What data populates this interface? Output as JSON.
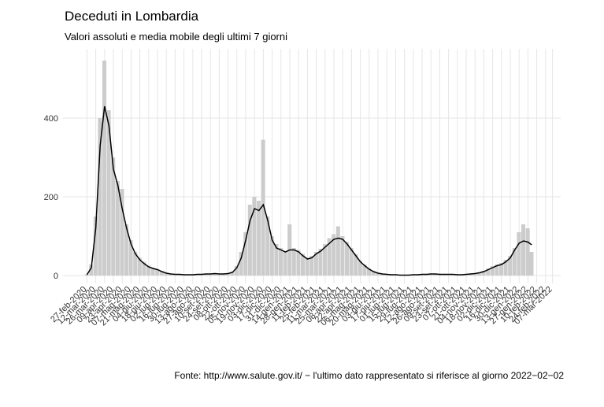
{
  "chart_data": {
    "type": "bar-line",
    "title": "Deceduti in Lombardia",
    "subtitle": "Valori assoluti e media mobile degli ultimi 7 giorni",
    "caption": "Fonte: http://www.salute.gov.it/ − l'ultimo dato rappresentato si riferisce al giorno 2022−02−02",
    "x": [
      "2020-02-27",
      "2020-03-05",
      "2020-03-12",
      "2020-03-19",
      "2020-03-26",
      "2020-04-02",
      "2020-04-09",
      "2020-04-16",
      "2020-04-23",
      "2020-04-30",
      "2020-05-07",
      "2020-05-14",
      "2020-05-21",
      "2020-05-28",
      "2020-06-04",
      "2020-06-11",
      "2020-06-18",
      "2020-06-25",
      "2020-07-02",
      "2020-07-09",
      "2020-07-16",
      "2020-07-23",
      "2020-07-30",
      "2020-08-06",
      "2020-08-13",
      "2020-08-20",
      "2020-08-27",
      "2020-09-03",
      "2020-09-10",
      "2020-09-17",
      "2020-09-24",
      "2020-10-01",
      "2020-10-08",
      "2020-10-15",
      "2020-10-22",
      "2020-10-29",
      "2020-11-05",
      "2020-11-12",
      "2020-11-19",
      "2020-11-26",
      "2020-12-03",
      "2020-12-10",
      "2020-12-17",
      "2020-12-24",
      "2020-12-31",
      "2021-01-07",
      "2021-01-14",
      "2021-01-21",
      "2021-01-28",
      "2021-02-04",
      "2021-02-11",
      "2021-02-18",
      "2021-02-25",
      "2021-03-04",
      "2021-03-11",
      "2021-03-18",
      "2021-03-25",
      "2021-04-01",
      "2021-04-08",
      "2021-04-15",
      "2021-04-22",
      "2021-04-29",
      "2021-05-06",
      "2021-05-13",
      "2021-05-20",
      "2021-05-27",
      "2021-06-03",
      "2021-06-10",
      "2021-06-17",
      "2021-06-24",
      "2021-07-01",
      "2021-07-08",
      "2021-07-15",
      "2021-07-22",
      "2021-07-29",
      "2021-08-05",
      "2021-08-12",
      "2021-08-19",
      "2021-08-26",
      "2021-09-02",
      "2021-09-09",
      "2021-09-16",
      "2021-09-23",
      "2021-09-30",
      "2021-10-07",
      "2021-10-14",
      "2021-10-21",
      "2021-10-28",
      "2021-11-04",
      "2021-11-11",
      "2021-11-18",
      "2021-11-25",
      "2021-12-02",
      "2021-12-09",
      "2021-12-16",
      "2021-12-23",
      "2021-12-30",
      "2022-01-06",
      "2022-01-13",
      "2022-01-20",
      "2022-01-27",
      "2022-02-02"
    ],
    "series": [
      {
        "type": "bar",
        "color": "#cccccc",
        "values": [
          3,
          28,
          150,
          400,
          546,
          420,
          300,
          240,
          220,
          130,
          90,
          60,
          45,
          35,
          25,
          20,
          16,
          11,
          7,
          5,
          4,
          3,
          3,
          2,
          2,
          3,
          4,
          5,
          4,
          6,
          5,
          4,
          6,
          10,
          24,
          60,
          110,
          180,
          200,
          190,
          345,
          150,
          100,
          80,
          70,
          62,
          130,
          70,
          65,
          55,
          45,
          50,
          60,
          68,
          80,
          95,
          105,
          125,
          100,
          85,
          70,
          55,
          38,
          28,
          18,
          11,
          7,
          5,
          4,
          3,
          2,
          2,
          1,
          1,
          2,
          2,
          3,
          4,
          4,
          5,
          4,
          3,
          3,
          3,
          2,
          3,
          4,
          5,
          6,
          8,
          12,
          18,
          24,
          28,
          32,
          40,
          50,
          70,
          110,
          130,
          120,
          60
        ]
      },
      {
        "type": "line",
        "color": "#000000",
        "values": [
          2,
          20,
          120,
          330,
          430,
          380,
          270,
          230,
          170,
          120,
          80,
          55,
          40,
          30,
          22,
          18,
          15,
          10,
          6,
          4,
          3,
          3,
          2,
          2,
          2,
          3,
          3,
          4,
          4,
          5,
          4,
          4,
          5,
          8,
          20,
          45,
          90,
          140,
          170,
          165,
          180,
          140,
          90,
          70,
          65,
          60,
          65,
          65,
          60,
          50,
          42,
          45,
          55,
          62,
          72,
          82,
          92,
          95,
          92,
          80,
          65,
          50,
          35,
          25,
          16,
          10,
          6,
          4,
          3,
          2,
          2,
          1,
          1,
          1,
          2,
          2,
          3,
          3,
          4,
          4,
          3,
          3,
          3,
          3,
          2,
          2,
          3,
          4,
          5,
          7,
          10,
          15,
          20,
          25,
          28,
          35,
          45,
          65,
          82,
          88,
          85,
          78
        ]
      }
    ],
    "xlim": [
      "2020-01-20",
      "2022-03-20"
    ],
    "xticks": [
      {
        "value": "2020-02-27",
        "label": "27-feb-2020"
      },
      {
        "value": "2020-03-12",
        "label": "12-mar-2020"
      },
      {
        "value": "2020-03-26",
        "label": "26-mar-2020"
      },
      {
        "value": "2020-04-09",
        "label": "09-apr-2020"
      },
      {
        "value": "2020-04-23",
        "label": "23-apr-2020"
      },
      {
        "value": "2020-05-07",
        "label": "07-mag-2020"
      },
      {
        "value": "2020-05-21",
        "label": "21-mag-2020"
      },
      {
        "value": "2020-06-04",
        "label": "04-giu-2020"
      },
      {
        "value": "2020-06-18",
        "label": "18-giu-2020"
      },
      {
        "value": "2020-07-02",
        "label": "02-lug-2020"
      },
      {
        "value": "2020-07-16",
        "label": "16-lug-2020"
      },
      {
        "value": "2020-07-30",
        "label": "30-lug-2020"
      },
      {
        "value": "2020-08-13",
        "label": "13-ago-2020"
      },
      {
        "value": "2020-08-27",
        "label": "27-ago-2020"
      },
      {
        "value": "2020-09-10",
        "label": "10-set-2020"
      },
      {
        "value": "2020-09-24",
        "label": "24-set-2020"
      },
      {
        "value": "2020-10-08",
        "label": "08-ott-2020"
      },
      {
        "value": "2020-10-22",
        "label": "22-ott-2020"
      },
      {
        "value": "2020-11-05",
        "label": "05-nov-2020"
      },
      {
        "value": "2020-11-19",
        "label": "19-nov-2020"
      },
      {
        "value": "2020-12-03",
        "label": "03-dic-2020"
      },
      {
        "value": "2020-12-17",
        "label": "17-dic-2020"
      },
      {
        "value": "2020-12-31",
        "label": "31-dic-2020"
      },
      {
        "value": "2021-01-14",
        "label": "14-gen-2021"
      },
      {
        "value": "2021-01-28",
        "label": "28-gen-2021"
      },
      {
        "value": "2021-02-11",
        "label": "11-feb-2021"
      },
      {
        "value": "2021-02-25",
        "label": "25-feb-2021"
      },
      {
        "value": "2021-03-11",
        "label": "11-mar-2021"
      },
      {
        "value": "2021-03-25",
        "label": "25-mar-2021"
      },
      {
        "value": "2021-04-08",
        "label": "08-apr-2021"
      },
      {
        "value": "2021-04-22",
        "label": "22-apr-2021"
      },
      {
        "value": "2021-05-06",
        "label": "06-mag-2021"
      },
      {
        "value": "2021-05-20",
        "label": "20-mag-2021"
      },
      {
        "value": "2021-06-03",
        "label": "03-giu-2021"
      },
      {
        "value": "2021-06-17",
        "label": "17-giu-2021"
      },
      {
        "value": "2021-07-01",
        "label": "01-lug-2021"
      },
      {
        "value": "2021-07-15",
        "label": "15-lug-2021"
      },
      {
        "value": "2021-07-29",
        "label": "29-lug-2021"
      },
      {
        "value": "2021-08-12",
        "label": "12-ago-2021"
      },
      {
        "value": "2021-08-26",
        "label": "26-ago-2021"
      },
      {
        "value": "2021-09-09",
        "label": "09-set-2021"
      },
      {
        "value": "2021-09-23",
        "label": "23-set-2021"
      },
      {
        "value": "2021-10-07",
        "label": "07-ott-2021"
      },
      {
        "value": "2021-10-21",
        "label": "21-ott-2021"
      },
      {
        "value": "2021-11-04",
        "label": "04-nov-2021"
      },
      {
        "value": "2021-11-18",
        "label": "18-nov-2021"
      },
      {
        "value": "2021-12-02",
        "label": "02-dic-2021"
      },
      {
        "value": "2021-12-16",
        "label": "16-dic-2021"
      },
      {
        "value": "2021-12-30",
        "label": "30-dic-2021"
      },
      {
        "value": "2022-01-13",
        "label": "13-gen-2022"
      },
      {
        "value": "2022-01-27",
        "label": "27-gen-2022"
      },
      {
        "value": "2022-02-10",
        "label": "10-feb-2022"
      },
      {
        "value": "2022-02-24",
        "label": "24-feb-2022"
      },
      {
        "value": "2022-03-07",
        "label": "07-mar-2022"
      }
    ],
    "ylim": [
      -20,
      576
    ],
    "yticks": [
      0,
      200,
      400
    ],
    "grid": true
  }
}
